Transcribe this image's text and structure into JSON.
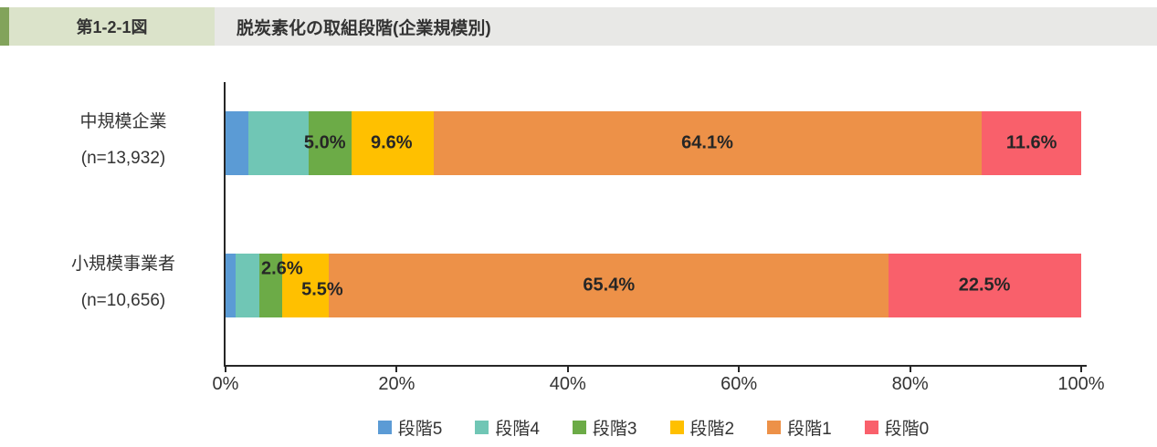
{
  "header": {
    "figure_label": "第1-2-1図",
    "title": "脱炭素化の取組段階(企業規模別)",
    "accent_color": "#82A35B",
    "figure_label_bg": "#DBE3CA",
    "title_bg": "#E8E8E6"
  },
  "chart_data": {
    "type": "bar",
    "orientation": "horizontal",
    "stacked": true,
    "unit": "%",
    "xlim": [
      0,
      100
    ],
    "x_tick_labels": [
      "0%",
      "20%",
      "40%",
      "60%",
      "80%",
      "100%"
    ],
    "legend_position": "bottom",
    "categories": [
      {
        "name": "中規模企業",
        "n_label": "(n=13,932)"
      },
      {
        "name": "小規模事業者",
        "n_label": "(n=10,656)"
      }
    ],
    "series": [
      {
        "name": "段階5",
        "color": "#5B9BD5",
        "values": [
          2.7,
          1.2
        ]
      },
      {
        "name": "段階4",
        "color": "#70C6B5",
        "values": [
          7.0,
          2.8
        ]
      },
      {
        "name": "段階3",
        "color": "#6CAB47",
        "values": [
          5.0,
          2.6
        ]
      },
      {
        "name": "段階2",
        "color": "#FFC000",
        "values": [
          9.6,
          5.5
        ]
      },
      {
        "name": "段階1",
        "color": "#ED9148",
        "values": [
          64.1,
          65.4
        ]
      },
      {
        "name": "段階0",
        "color": "#F9606B",
        "values": [
          11.6,
          22.5
        ]
      }
    ],
    "shown_data_labels": [
      [
        {
          "text": "5.0%",
          "x_pct": 11.6,
          "dy": 0
        },
        {
          "text": "9.6%",
          "x_pct": 19.4,
          "dy": 0
        },
        {
          "text": "64.1%",
          "x_pct": 56.3,
          "dy": 0
        },
        {
          "text": "11.6%",
          "x_pct": 94.2,
          "dy": 0
        }
      ],
      [
        {
          "text": "2.6%",
          "x_pct": 6.6,
          "dy": -18
        },
        {
          "text": "5.5%",
          "x_pct": 11.3,
          "dy": 5
        },
        {
          "text": "65.4%",
          "x_pct": 44.8,
          "dy": 0
        },
        {
          "text": "22.5%",
          "x_pct": 88.7,
          "dy": 0
        }
      ]
    ],
    "note": "values for 段階5 and 段階4 are unlabeled in the figure and estimated from segment widths"
  }
}
